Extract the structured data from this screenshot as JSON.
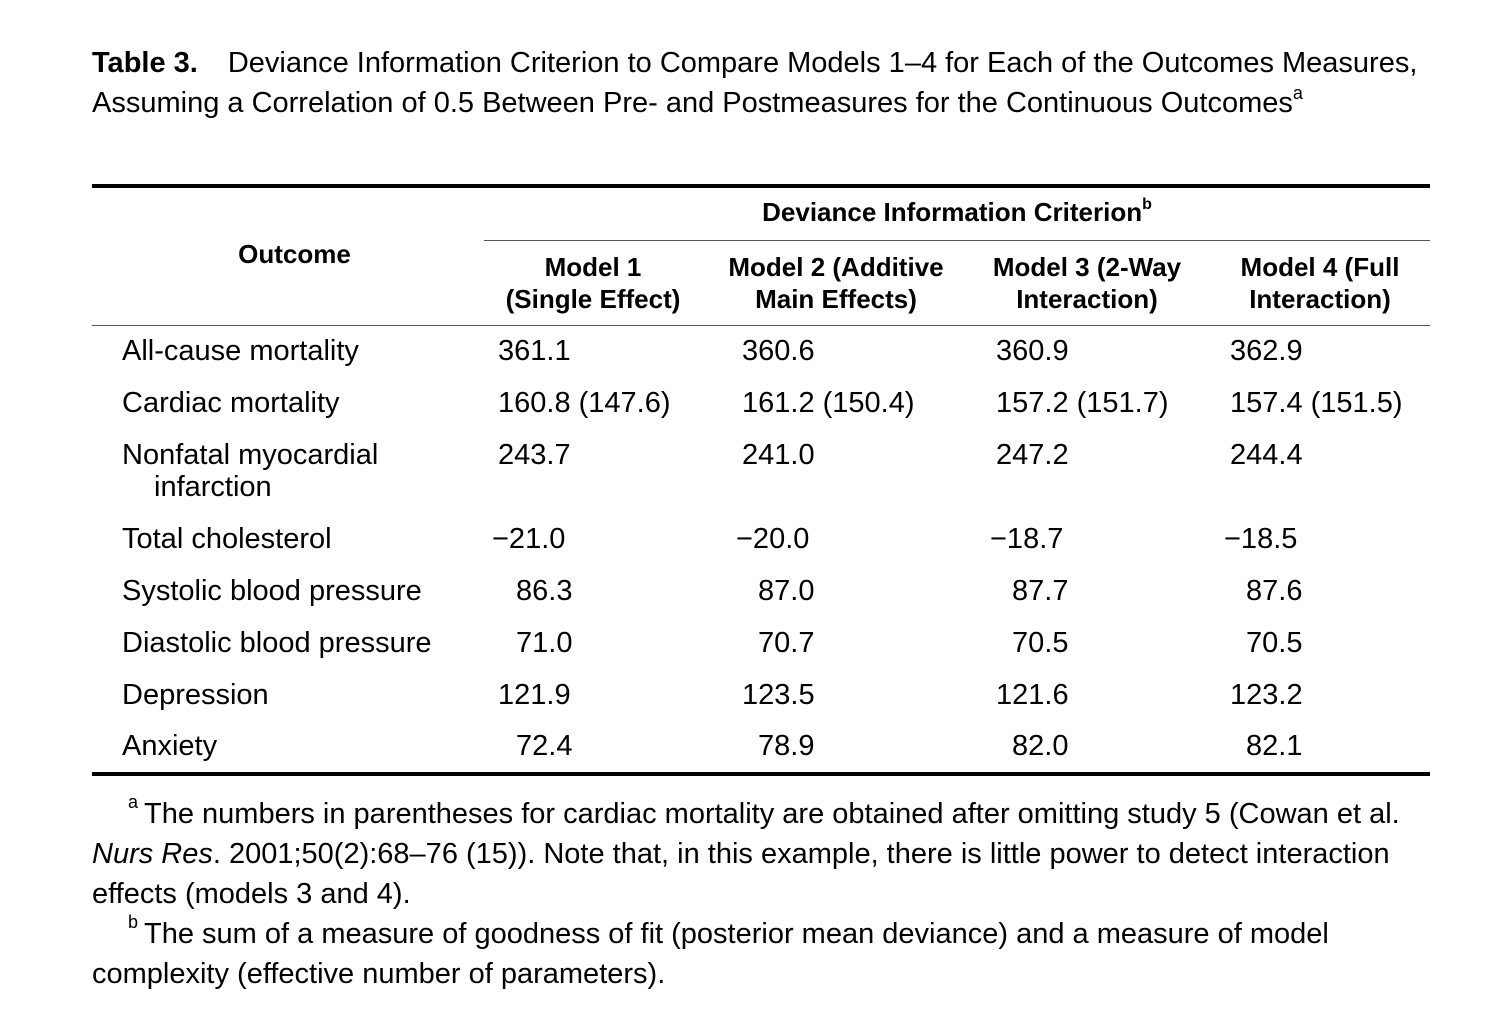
{
  "caption": {
    "label": "Table 3.",
    "text": "Deviance Information Criterion to Compare Models 1–4 for Each of the Outcomes Measures, Assuming a Correlation of 0.5 Between Pre- and Postmeasures for the Continuous Outcomes",
    "marker": "a"
  },
  "table": {
    "outcome_header": "Outcome",
    "group_header": "Deviance Information Criterion",
    "group_marker": "b",
    "columns": [
      {
        "line1": "Model 1",
        "line2": "(Single Effect)"
      },
      {
        "line1": "Model 2 (Additive",
        "line2": "Main Effects)"
      },
      {
        "line1": "Model 3 (2-Way",
        "line2": "Interaction)"
      },
      {
        "line1": "Model 4 (Full",
        "line2": "Interaction)"
      }
    ],
    "rows": [
      {
        "outcome": "All-cause mortality",
        "outcome_cont": "",
        "values": [
          "361.1",
          "360.6",
          "360.9",
          "362.9"
        ]
      },
      {
        "outcome": "Cardiac mortality",
        "outcome_cont": "",
        "values": [
          "160.8 (147.6)",
          "161.2 (150.4)",
          "157.2 (151.7)",
          "157.4 (151.5)"
        ]
      },
      {
        "outcome": "Nonfatal myocardial",
        "outcome_cont": "infarction",
        "values": [
          "243.7",
          "241.0",
          "247.2",
          "244.4"
        ]
      },
      {
        "outcome": "Total cholesterol",
        "outcome_cont": "",
        "values": [
          "−21.0",
          "−20.0",
          "−18.7",
          "−18.5"
        ]
      },
      {
        "outcome": "Systolic blood pressure",
        "outcome_cont": "",
        "values": [
          "86.3",
          "87.0",
          "87.7",
          "87.6"
        ]
      },
      {
        "outcome": "Diastolic blood pressure",
        "outcome_cont": "",
        "values": [
          "71.0",
          "70.7",
          "70.5",
          "70.5"
        ]
      },
      {
        "outcome": "Depression",
        "outcome_cont": "",
        "values": [
          "121.9",
          "123.5",
          "121.6",
          "123.2"
        ]
      },
      {
        "outcome": "Anxiety",
        "outcome_cont": "",
        "values": [
          "72.4",
          "78.9",
          "82.0",
          "82.1"
        ]
      }
    ]
  },
  "footnotes": {
    "a": {
      "marker": "a",
      "text_before": "The numbers in parentheses for cardiac mortality are obtained after omitting study 5 (Cowan et al. ",
      "journal": "Nurs Res",
      "text_after": ". 2001;50(2):68–76 (15)). Note that, in this example, there is little power to detect interaction effects (models 3 and 4)."
    },
    "b": {
      "marker": "b",
      "text": "The sum of a measure of goodness of fit (posterior mean deviance) and a measure of model complexity (effective number of parameters)."
    }
  }
}
